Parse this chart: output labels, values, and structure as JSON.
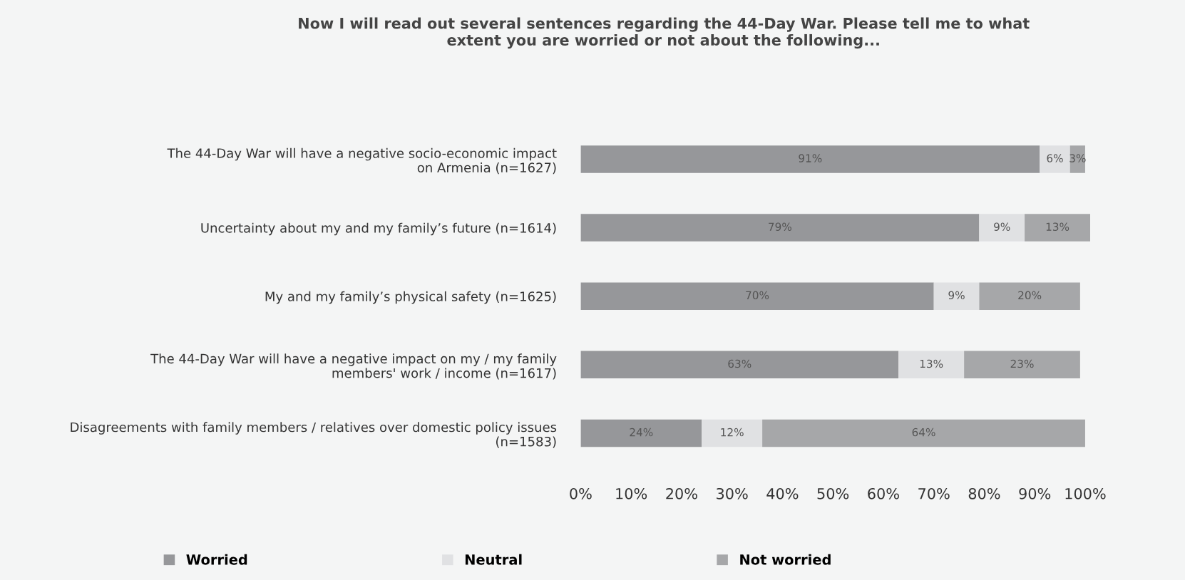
{
  "chart_data": {
    "type": "bar",
    "orientation": "horizontal",
    "stacked": true,
    "title": "Now I will read out several sentences regarding the 44-Day War. Please tell me to what\nextent you are worried or not about the following...",
    "categories": [
      "The 44-Day War will have a negative socio-economic impact\non Armenia (n=1627)",
      "Uncertainty about my and my family’s future (n=1614)",
      "My and my family’s physical safety (n=1625)",
      "The 44-Day War will have a negative impact on my / my family\nmembers' work / income (n=1617)",
      "Disagreements with family members / relatives over domestic policy issues\n(n=1583)"
    ],
    "series": [
      {
        "name": "Worried",
        "color": "#96979a",
        "values": [
          91,
          79,
          70,
          63,
          24
        ]
      },
      {
        "name": "Neutral",
        "color": "#e0e1e3",
        "values": [
          6,
          9,
          9,
          13,
          12
        ]
      },
      {
        "name": "Not worried",
        "color": "#a6a7a9",
        "values": [
          3,
          13,
          20,
          23,
          64
        ]
      }
    ],
    "xlim": [
      0,
      101
    ],
    "xticks": [
      {
        "value": 0,
        "label": "0%"
      },
      {
        "value": 10,
        "label": "10%"
      },
      {
        "value": 20,
        "label": "20%"
      },
      {
        "value": 30,
        "label": "30%"
      },
      {
        "value": 40,
        "label": "40%"
      },
      {
        "value": 50,
        "label": "50%"
      },
      {
        "value": 60,
        "label": "60%"
      },
      {
        "value": 70,
        "label": "70%"
      },
      {
        "value": 80,
        "label": "80%"
      },
      {
        "value": 90,
        "label": "90%"
      },
      {
        "value": 100,
        "label": "100%"
      }
    ],
    "value_labels": [
      [
        "91%",
        "79%",
        "70%",
        "63%",
        "24%"
      ],
      [
        "6%",
        "9%",
        "9%",
        "13%",
        "12%"
      ],
      [
        "3%",
        "13%",
        "20%",
        "23%",
        "64%"
      ]
    ],
    "grid": false,
    "legend": "bottom"
  }
}
